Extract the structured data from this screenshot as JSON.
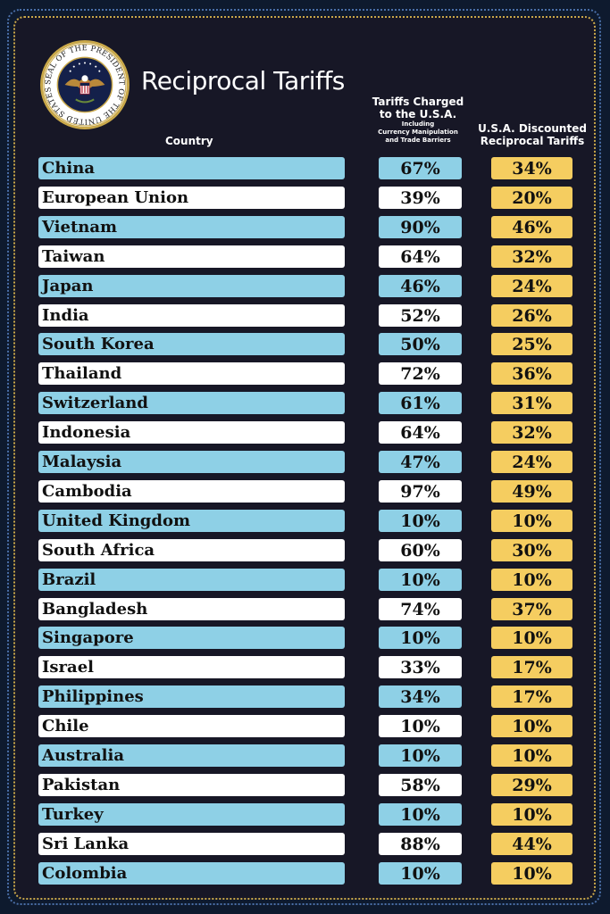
{
  "title": "Reciprocal Tariffs",
  "seal": {
    "text": "SEAL OF THE PRESIDENT OF THE UNITED STATES",
    "icon": "presidential-seal-icon"
  },
  "headers": {
    "country": "Country",
    "charged_line1": "Tariffs Charged",
    "charged_line2": "to the U.S.A.",
    "charged_sub1": "Including",
    "charged_sub2": "Currency Manipulation",
    "charged_sub3": "and Trade Barriers",
    "discounted_line1": "U.S.A. Discounted",
    "discounted_line2": "Reciprocal Tariffs"
  },
  "colors": {
    "background": "#171726",
    "row_blue": "#8ed0e6",
    "row_white": "#ffffff",
    "discount_gold": "#f5cd60"
  },
  "chart_data": {
    "type": "table",
    "title": "Reciprocal Tariffs",
    "columns": [
      "Country",
      "Tariffs Charged to the U.S.A. Including Currency Manipulation and Trade Barriers",
      "U.S.A. Discounted Reciprocal Tariffs"
    ],
    "rows": [
      {
        "country": "China",
        "charged": "67%",
        "discounted": "34%"
      },
      {
        "country": "European Union",
        "charged": "39%",
        "discounted": "20%"
      },
      {
        "country": "Vietnam",
        "charged": "90%",
        "discounted": "46%"
      },
      {
        "country": "Taiwan",
        "charged": "64%",
        "discounted": "32%"
      },
      {
        "country": "Japan",
        "charged": "46%",
        "discounted": "24%"
      },
      {
        "country": "India",
        "charged": "52%",
        "discounted": "26%"
      },
      {
        "country": "South Korea",
        "charged": "50%",
        "discounted": "25%"
      },
      {
        "country": "Thailand",
        "charged": "72%",
        "discounted": "36%"
      },
      {
        "country": "Switzerland",
        "charged": "61%",
        "discounted": "31%"
      },
      {
        "country": "Indonesia",
        "charged": "64%",
        "discounted": "32%"
      },
      {
        "country": "Malaysia",
        "charged": "47%",
        "discounted": "24%"
      },
      {
        "country": "Cambodia",
        "charged": "97%",
        "discounted": "49%"
      },
      {
        "country": "United Kingdom",
        "charged": "10%",
        "discounted": "10%"
      },
      {
        "country": "South Africa",
        "charged": "60%",
        "discounted": "30%"
      },
      {
        "country": "Brazil",
        "charged": "10%",
        "discounted": "10%"
      },
      {
        "country": "Bangladesh",
        "charged": "74%",
        "discounted": "37%"
      },
      {
        "country": "Singapore",
        "charged": "10%",
        "discounted": "10%"
      },
      {
        "country": "Israel",
        "charged": "33%",
        "discounted": "17%"
      },
      {
        "country": "Philippines",
        "charged": "34%",
        "discounted": "17%"
      },
      {
        "country": "Chile",
        "charged": "10%",
        "discounted": "10%"
      },
      {
        "country": "Australia",
        "charged": "10%",
        "discounted": "10%"
      },
      {
        "country": "Pakistan",
        "charged": "58%",
        "discounted": "29%"
      },
      {
        "country": "Turkey",
        "charged": "10%",
        "discounted": "10%"
      },
      {
        "country": "Sri Lanka",
        "charged": "88%",
        "discounted": "44%"
      },
      {
        "country": "Colombia",
        "charged": "10%",
        "discounted": "10%"
      }
    ]
  }
}
